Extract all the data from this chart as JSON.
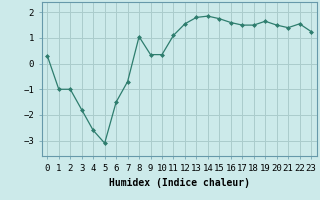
{
  "x": [
    0,
    1,
    2,
    3,
    4,
    5,
    6,
    7,
    8,
    9,
    10,
    11,
    12,
    13,
    14,
    15,
    16,
    17,
    18,
    19,
    20,
    21,
    22,
    23
  ],
  "y": [
    0.3,
    -1.0,
    -1.0,
    -1.8,
    -2.6,
    -3.1,
    -1.5,
    -0.7,
    1.05,
    0.35,
    0.35,
    1.1,
    1.55,
    1.8,
    1.85,
    1.75,
    1.6,
    1.5,
    1.5,
    1.65,
    1.5,
    1.4,
    1.55,
    1.25
  ],
  "line_color": "#2e7d6e",
  "marker": "D",
  "marker_size": 2.0,
  "background_color": "#cceaea",
  "grid_color": "#aacccc",
  "xlabel": "Humidex (Indice chaleur)",
  "xlabel_fontsize": 7,
  "tick_fontsize": 6.5,
  "ylim": [
    -3.6,
    2.4
  ],
  "xlim": [
    -0.5,
    23.5
  ],
  "yticks": [
    -3,
    -2,
    -1,
    0,
    1,
    2
  ],
  "xtick_labels": [
    "0",
    "1",
    "2",
    "3",
    "4",
    "5",
    "6",
    "7",
    "8",
    "9",
    "10",
    "11",
    "12",
    "13",
    "14",
    "15",
    "16",
    "17",
    "18",
    "19",
    "20",
    "21",
    "22",
    "23"
  ]
}
